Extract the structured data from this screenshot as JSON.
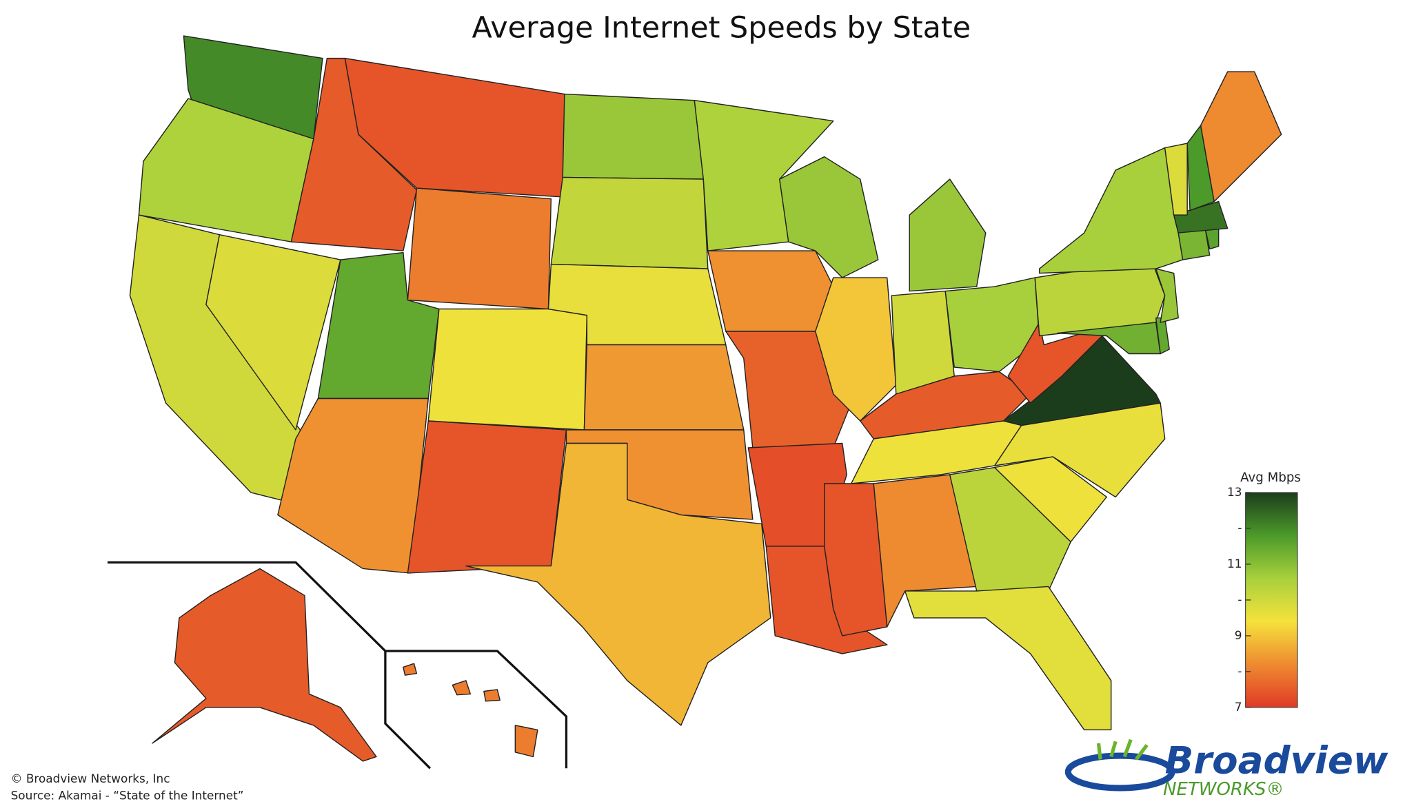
{
  "map": {
    "type": "choropleth",
    "title": "Average Internet Speeds by State",
    "values": [
      12,
      10.5,
      10,
      7.5,
      9.8,
      7.4,
      8,
      11.5,
      8.3,
      9.5,
      7.4,
      10.8,
      10.2,
      9.6,
      8.4,
      8.3,
      8.8,
      10.5,
      8.3,
      7.6,
      7.3,
      7.4,
      10.8,
      9,
      10,
      10.8,
      10.6,
      7.5,
      9.5,
      7.4,
      8.2,
      10.3,
      9.7,
      9.5,
      9.6,
      13,
      7.4,
      10.3,
      10.6,
      11.3,
      11.5,
      10.8,
      11.2,
      11.6,
      12.3,
      9.8,
      11.8,
      8.2,
      7.5,
      8
    ],
    "colors": [
      "#e03a26",
      "#ee8a30",
      "#f5e23c",
      "#a8d03c",
      "#4c9a2a",
      "#1c3d1c"
    ],
    "legend": {
      "title": "Avg Mbps",
      "lim": [
        7,
        13
      ],
      "ticks": [
        13,
        {
          "value": 12,
          "label": "-"
        },
        11,
        {
          "value": 10,
          "label": "-"
        },
        9,
        {
          "value": 8,
          "label": "-"
        },
        7
      ]
    },
    "credits": {
      "copyright": "© Broadview Networks, Inc",
      "source": "Source: Akamai - “State of the Internet”"
    },
    "logo": {
      "name": "Broadview",
      "subtitle": "NETWORKS®"
    }
  }
}
